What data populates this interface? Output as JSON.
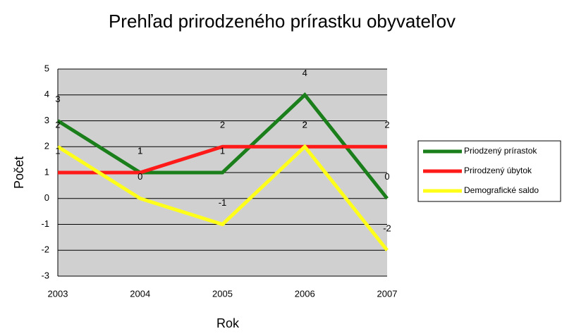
{
  "chart_data": {
    "type": "line",
    "title": "Prehľad prirodzeného prírastku obyvateľov",
    "x_label": "Rok",
    "y_label": "Počet",
    "categories": [
      "2003",
      "2004",
      "2005",
      "2006",
      "2007"
    ],
    "series": [
      {
        "name": "Priodzený prírastok",
        "color": "#1a7f1a",
        "values": [
          3,
          1,
          1,
          4,
          0
        ]
      },
      {
        "name": "Prirodzený úbytok",
        "color": "#ff1a1a",
        "values": [
          1,
          1,
          2,
          2,
          2
        ]
      },
      {
        "name": "Demografické saldo",
        "color": "#ffff1a",
        "values": [
          2,
          0,
          -1,
          2,
          -2
        ]
      }
    ],
    "ylim": [
      -3,
      5
    ],
    "yticks": [
      -3,
      -2,
      -1,
      0,
      1,
      2,
      3,
      4,
      5
    ],
    "grid": true,
    "legend": "right"
  }
}
